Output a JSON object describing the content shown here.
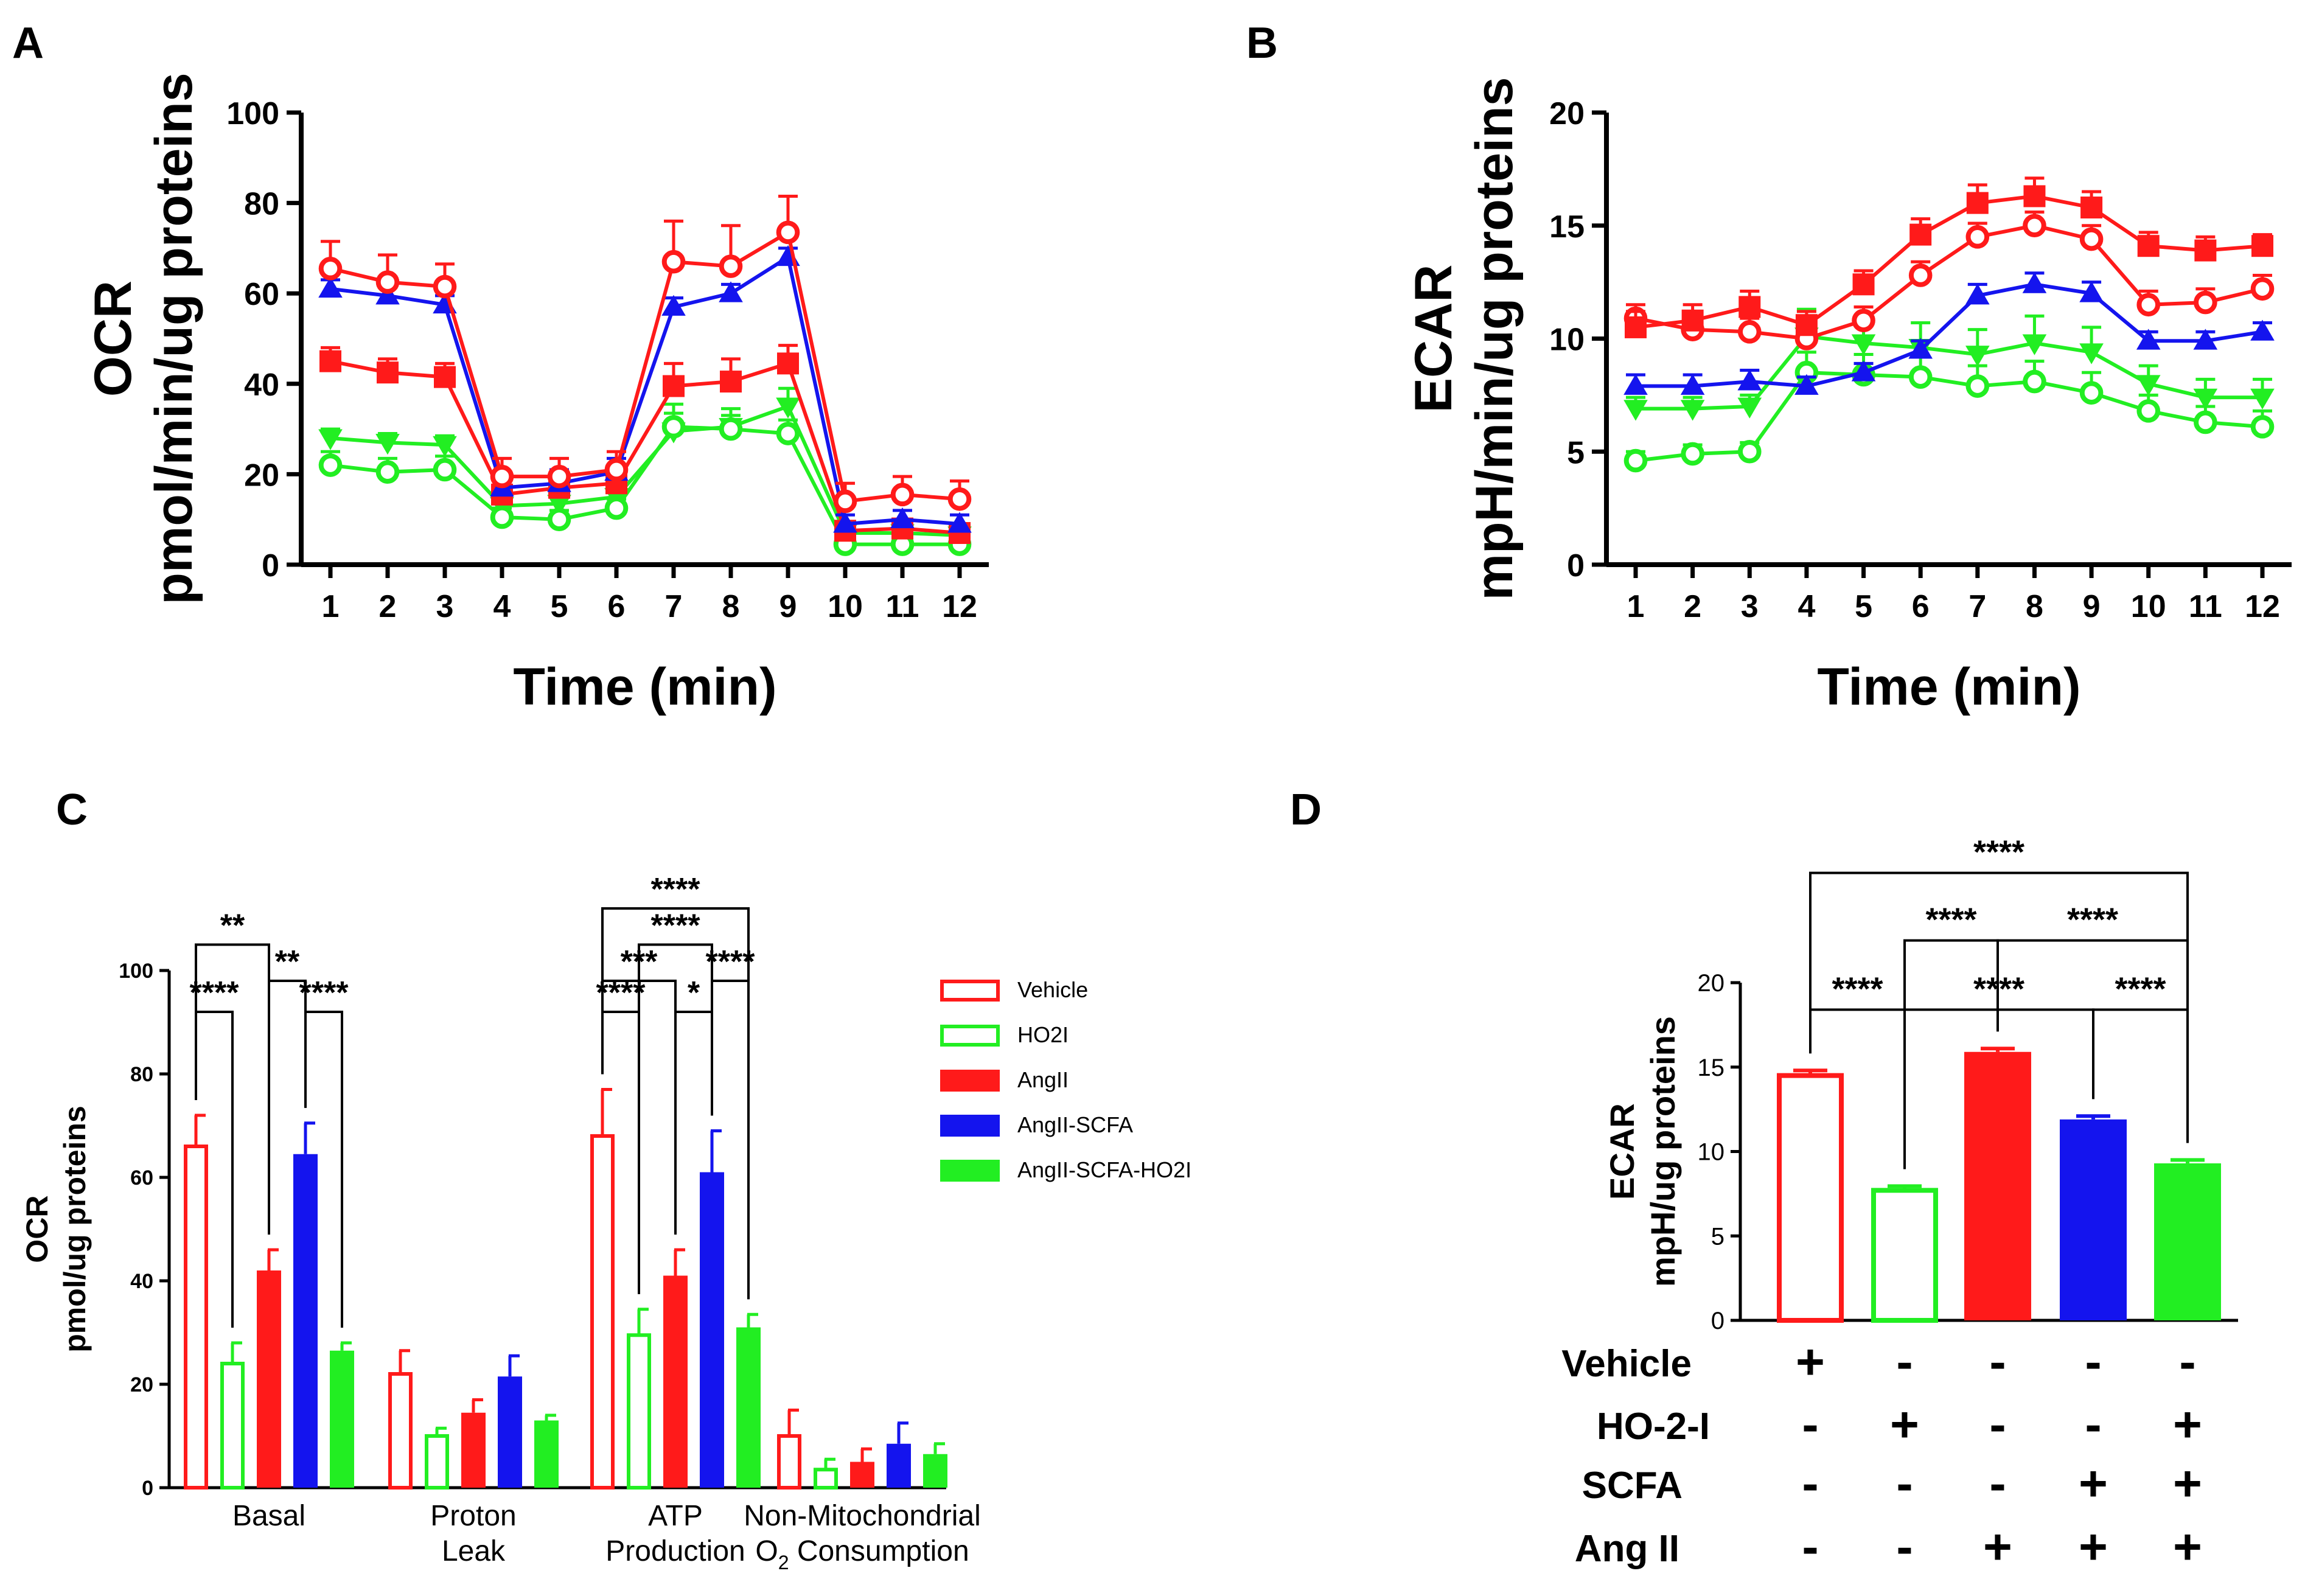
{
  "panels": {
    "A": "A",
    "B": "B",
    "C": "C",
    "D": "D"
  },
  "colors": {
    "red": "#ff1a1a",
    "green": "#22ee22",
    "blue": "#1414ee",
    "black": "#000000"
  },
  "chart_data": [
    {
      "id": "A",
      "type": "line",
      "title": "",
      "xlabel": "Time (min)",
      "ylabel": "OCR",
      "ylabel2": "pmol/min/ug proteins",
      "x": [
        1,
        2,
        3,
        4,
        5,
        6,
        7,
        8,
        9,
        10,
        11,
        12
      ],
      "ylim": [
        0,
        100
      ],
      "yticks": [
        0,
        20,
        40,
        60,
        80,
        100
      ],
      "series": [
        {
          "name": "AngII-SCFA-HO2I",
          "color": "#22ee22",
          "marker": "triangle-down",
          "values": [
            28,
            27,
            26.5,
            13,
            13.5,
            15,
            29.5,
            30.5,
            35,
            7,
            7,
            6.5
          ],
          "errors": [
            2,
            2,
            2,
            2,
            2,
            2,
            6,
            4,
            4,
            2,
            2,
            2
          ]
        },
        {
          "name": "HO2I",
          "color": "#22ee22",
          "marker": "open-circle",
          "values": [
            22,
            20.5,
            21,
            10.5,
            10,
            12.5,
            30.5,
            30,
            29,
            4.5,
            4.5,
            4.5
          ],
          "errors": [
            3,
            3,
            3,
            2,
            2,
            2,
            3,
            3,
            3,
            1,
            1,
            1
          ]
        },
        {
          "name": "AngII",
          "color": "#ff1a1a",
          "marker": "square",
          "values": [
            45,
            42.5,
            41.5,
            15.5,
            17,
            18,
            39.5,
            40.5,
            44.5,
            7.5,
            8,
            7
          ],
          "errors": [
            3,
            3,
            3,
            3,
            3,
            3,
            5,
            5,
            4,
            2,
            2,
            2
          ]
        },
        {
          "name": "AngII-SCFA",
          "color": "#1414ee",
          "marker": "triangle-up",
          "values": [
            61,
            59.5,
            57.5,
            17,
            18,
            20.5,
            57,
            60,
            68,
            9,
            10,
            9
          ],
          "errors": [
            2,
            2,
            2,
            3,
            3,
            3,
            2,
            2,
            2,
            2,
            2,
            2
          ]
        },
        {
          "name": "Vehicle",
          "color": "#ff1a1a",
          "marker": "open-circle",
          "values": [
            65.5,
            62.5,
            61.5,
            19.5,
            19.5,
            21,
            67,
            66,
            73.5,
            14,
            15.5,
            14.5
          ],
          "errors": [
            6,
            6,
            5,
            4,
            4,
            4,
            9,
            9,
            8,
            4,
            4,
            4
          ]
        }
      ]
    },
    {
      "id": "B",
      "type": "line",
      "title": "",
      "xlabel": "Time (min)",
      "ylabel": "ECAR",
      "ylabel2": "mpH/min/ug proteins",
      "x": [
        1,
        2,
        3,
        4,
        5,
        6,
        7,
        8,
        9,
        10,
        11,
        12
      ],
      "ylim": [
        0,
        20
      ],
      "yticks": [
        0,
        5,
        10,
        15,
        20
      ],
      "series": [
        {
          "name": "HO2I",
          "color": "#22ee22",
          "marker": "open-circle",
          "values": [
            4.6,
            4.9,
            5.0,
            8.5,
            8.4,
            8.3,
            7.9,
            8.1,
            7.6,
            6.8,
            6.3,
            6.1
          ],
          "errors": [
            0.4,
            0.4,
            0.4,
            0.9,
            0.9,
            0.9,
            0.9,
            0.9,
            0.9,
            0.7,
            0.7,
            0.7
          ]
        },
        {
          "name": "AngII-SCFA-HO2I",
          "color": "#22ee22",
          "marker": "triangle-down",
          "values": [
            6.9,
            6.9,
            7.0,
            10.1,
            9.8,
            9.6,
            9.3,
            9.8,
            9.4,
            8.0,
            7.4,
            7.4
          ],
          "errors": [
            0.5,
            0.5,
            0.5,
            1.2,
            1.1,
            1.1,
            1.1,
            1.2,
            1.1,
            0.8,
            0.8,
            0.8
          ]
        },
        {
          "name": "AngII-SCFA",
          "color": "#1414ee",
          "marker": "triangle-up",
          "values": [
            7.9,
            7.9,
            8.1,
            7.9,
            8.5,
            9.5,
            11.9,
            12.4,
            12.0,
            9.9,
            9.9,
            10.3
          ],
          "errors": [
            0.5,
            0.5,
            0.5,
            0.4,
            0.4,
            0.4,
            0.5,
            0.5,
            0.5,
            0.4,
            0.4,
            0.4
          ]
        },
        {
          "name": "Vehicle",
          "color": "#ff1a1a",
          "marker": "open-circle",
          "values": [
            10.9,
            10.4,
            10.3,
            10.0,
            10.8,
            12.8,
            14.5,
            15.0,
            14.4,
            11.5,
            11.6,
            12.2
          ],
          "errors": [
            0.6,
            0.6,
            0.6,
            0.6,
            0.6,
            0.6,
            0.6,
            0.6,
            0.6,
            0.6,
            0.6,
            0.6
          ]
        },
        {
          "name": "AngII",
          "color": "#ff1a1a",
          "marker": "square",
          "values": [
            10.5,
            10.8,
            11.4,
            10.6,
            12.4,
            14.6,
            16.0,
            16.3,
            15.8,
            14.1,
            13.9,
            14.1
          ],
          "errors": [
            0.7,
            0.7,
            0.7,
            0.6,
            0.6,
            0.7,
            0.8,
            0.8,
            0.7,
            0.6,
            0.6,
            0.5
          ]
        }
      ]
    },
    {
      "id": "C",
      "type": "bar",
      "title": "",
      "xlabel": "",
      "ylabel": "OCR",
      "ylabel2": "pmol/ug proteins",
      "ylim": [
        0,
        100
      ],
      "yticks": [
        0,
        20,
        40,
        60,
        80,
        100
      ],
      "category_lines": [
        [
          "Basal"
        ],
        [
          "Proton",
          "Leak"
        ],
        [
          "ATP",
          "Production"
        ],
        [
          "Non-Mitochondrial",
          "O",
          "2",
          " Consumption"
        ]
      ],
      "series": [
        {
          "name": "Vehicle",
          "color": "#ff1a1a",
          "fill": "open",
          "values": [
            66,
            22,
            68,
            10
          ],
          "errors": [
            6,
            4.5,
            9,
            5
          ]
        },
        {
          "name": "HO2I",
          "color": "#22ee22",
          "fill": "open",
          "values": [
            24,
            10,
            29.5,
            3.5
          ],
          "errors": [
            4,
            1.5,
            5,
            2
          ]
        },
        {
          "name": "AngII",
          "color": "#ff1a1a",
          "fill": "solid",
          "values": [
            42,
            14.5,
            41,
            5
          ],
          "errors": [
            4,
            2.5,
            5,
            2.5
          ]
        },
        {
          "name": "AngII-SCFA",
          "color": "#1414ee",
          "fill": "solid",
          "values": [
            64.5,
            21.5,
            61,
            8.5
          ],
          "errors": [
            6,
            4,
            8,
            4
          ]
        },
        {
          "name": "AngII-SCFA-HO2I",
          "color": "#22ee22",
          "fill": "solid",
          "values": [
            26.5,
            13,
            31,
            6.5
          ],
          "errors": [
            1.5,
            1,
            2.5,
            2
          ]
        }
      ],
      "significance": [
        {
          "cat": 0,
          "from": 0,
          "to": 1,
          "label": "****",
          "y": 92
        },
        {
          "cat": 0,
          "from": 3,
          "to": 4,
          "label": "****",
          "y": 92
        },
        {
          "cat": 0,
          "from": 2,
          "to": 3,
          "label": "**",
          "y": 98
        },
        {
          "cat": 0,
          "from": 0,
          "to": 2,
          "label": "**",
          "y": 105
        },
        {
          "cat": 2,
          "from": 0,
          "to": 1,
          "label": "****",
          "y": 92
        },
        {
          "cat": 2,
          "from": 2,
          "to": 3,
          "label": "*",
          "y": 92
        },
        {
          "cat": 2,
          "from": 0,
          "to": 2,
          "label": "***",
          "y": 98
        },
        {
          "cat": 2,
          "from": 3,
          "to": 4,
          "label": "****",
          "y": 98
        },
        {
          "cat": 2,
          "from": 1,
          "to": 3,
          "label": "****",
          "y": 105
        },
        {
          "cat": 2,
          "from": 0,
          "to": 4,
          "label": "****",
          "y": 112
        }
      ],
      "legend": [
        "Vehicle",
        "HO2I",
        "AngII",
        "AngII-SCFA",
        "AngII-SCFA-HO2I"
      ]
    },
    {
      "id": "D",
      "type": "bar",
      "title": "",
      "xlabel": "",
      "ylabel": "ECAR",
      "ylabel2": "mpH/ug proteins",
      "ylim": [
        0,
        20
      ],
      "yticks": [
        0,
        5,
        10,
        15,
        20
      ],
      "bars": [
        {
          "name": "Vehicle",
          "color": "#ff1a1a",
          "fill": "open",
          "value": 14.5,
          "error": 0.3
        },
        {
          "name": "HO-2-I",
          "color": "#22ee22",
          "fill": "open",
          "value": 7.7,
          "error": 0.25
        },
        {
          "name": "Ang II",
          "color": "#ff1a1a",
          "fill": "solid",
          "value": 15.9,
          "error": 0.2
        },
        {
          "name": "Ang II + SCFA",
          "color": "#1414ee",
          "fill": "solid",
          "value": 11.9,
          "error": 0.2
        },
        {
          "name": "Ang II + SCFA + HO-2-I",
          "color": "#22ee22",
          "fill": "solid",
          "value": 9.3,
          "error": 0.2
        }
      ],
      "significance": [
        {
          "from": 0,
          "to": 1,
          "label": "****",
          "y": 18.4
        },
        {
          "from": 1,
          "to": 3,
          "label": "****",
          "y": 18.4
        },
        {
          "from": 3,
          "to": 4,
          "label": "****",
          "y": 18.4
        },
        {
          "from": 1,
          "to": 2,
          "label": "****",
          "y": 22.5
        },
        {
          "from": 2,
          "to": 4,
          "label": "****",
          "y": 22.5
        },
        {
          "from": 0,
          "to": 4,
          "label": "****",
          "y": 26.5
        }
      ],
      "treatment_rows": [
        {
          "label": "Vehicle",
          "signs": [
            "+",
            "-",
            "-",
            "-",
            "-"
          ]
        },
        {
          "label": "HO-2-I",
          "signs": [
            "-",
            "+",
            "-",
            "-",
            "+"
          ]
        },
        {
          "label": "SCFA",
          "signs": [
            "-",
            "-",
            "-",
            "+",
            "+"
          ]
        },
        {
          "label": "Ang II",
          "signs": [
            "-",
            "-",
            "+",
            "+",
            "+"
          ]
        }
      ]
    }
  ]
}
